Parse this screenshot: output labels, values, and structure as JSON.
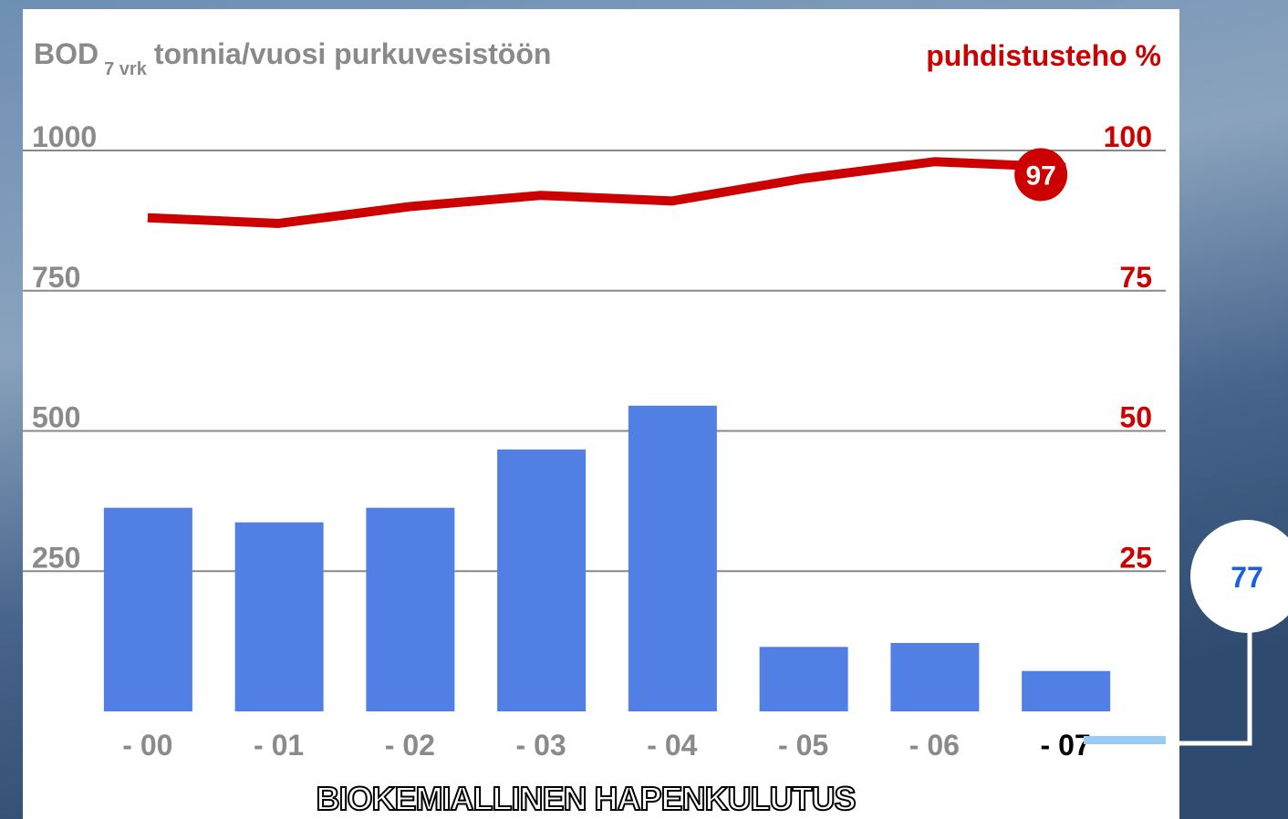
{
  "chart_data": {
    "type": "bar",
    "y_label": {
      "main": "BOD",
      "sub": "7 vrk",
      "rest": "tonnia/vuosi purkuvesistöön"
    },
    "y2_label": "puhdistusteho %",
    "title": "BIOKEMIALLINEN HAPENKULUTUS",
    "categories": [
      "- 00",
      "- 01",
      "- 02",
      "- 03",
      "- 04",
      "- 05",
      "- 06",
      "- 07"
    ],
    "series": [
      {
        "type": "bar",
        "color": "#527fe4",
        "values": [
          363,
          337,
          363,
          467,
          545,
          115,
          122,
          72
        ]
      },
      {
        "type": "line",
        "axis": "y2",
        "color": "#cc0000",
        "values": [
          88,
          87,
          90,
          92,
          91,
          95,
          98,
          97
        ],
        "value_labels": [
          null,
          null,
          null,
          null,
          null,
          null,
          null,
          "97"
        ]
      }
    ],
    "ylim": [
      0,
      1000
    ],
    "yticks": [
      250,
      500,
      750,
      1000
    ],
    "y2lim": [
      0,
      100
    ],
    "y2ticks": [
      25,
      50,
      75,
      100
    ],
    "grid": true,
    "annotation": "77"
  }
}
